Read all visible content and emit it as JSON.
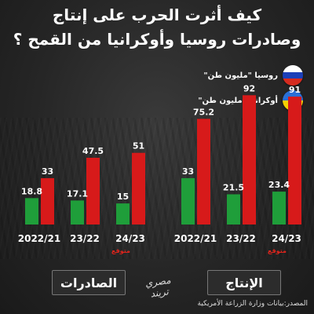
{
  "title": {
    "line1": "كيف أثرت الحرب على إنتاج",
    "line2": "وصادرات روسيا وأوكرانيا من القمح ؟"
  },
  "legend": {
    "russia": "روسيا \"مليون طن\"",
    "ukraine": "أوكرانيا \"مليون طن\""
  },
  "colors": {
    "russia": "#d71a1a",
    "ukraine": "#1f9e3a"
  },
  "sections": {
    "exports": "الصادرات",
    "production": "الإنتاج"
  },
  "logo": "مصري تريند",
  "source": "المصدر:بيانات وزارة الزراعة الأمريكية",
  "chart_data": [
    {
      "type": "bar",
      "categories": [
        "2022/21",
        "23/22",
        "24/23"
      ],
      "estimate_label": "متوقع",
      "series": [
        {
          "name": "أوكرانيا \"مليون طن\"",
          "values": [
            18.8,
            17.1,
            15
          ]
        },
        {
          "name": "روسيا \"مليون طن\"",
          "values": [
            33,
            47.5,
            51
          ]
        }
      ],
      "ylim": [
        0,
        100
      ]
    },
    {
      "type": "bar",
      "categories": [
        "2022/21",
        "23/22",
        "24/23"
      ],
      "estimate_label": "متوقع",
      "series": [
        {
          "name": "أوكرانيا \"مليون طن\"",
          "values": [
            33,
            21.5,
            23.4
          ]
        },
        {
          "name": "روسيا \"مليون طن\"",
          "values": [
            75.2,
            92,
            91
          ]
        }
      ],
      "ylim": [
        0,
        100
      ]
    }
  ]
}
